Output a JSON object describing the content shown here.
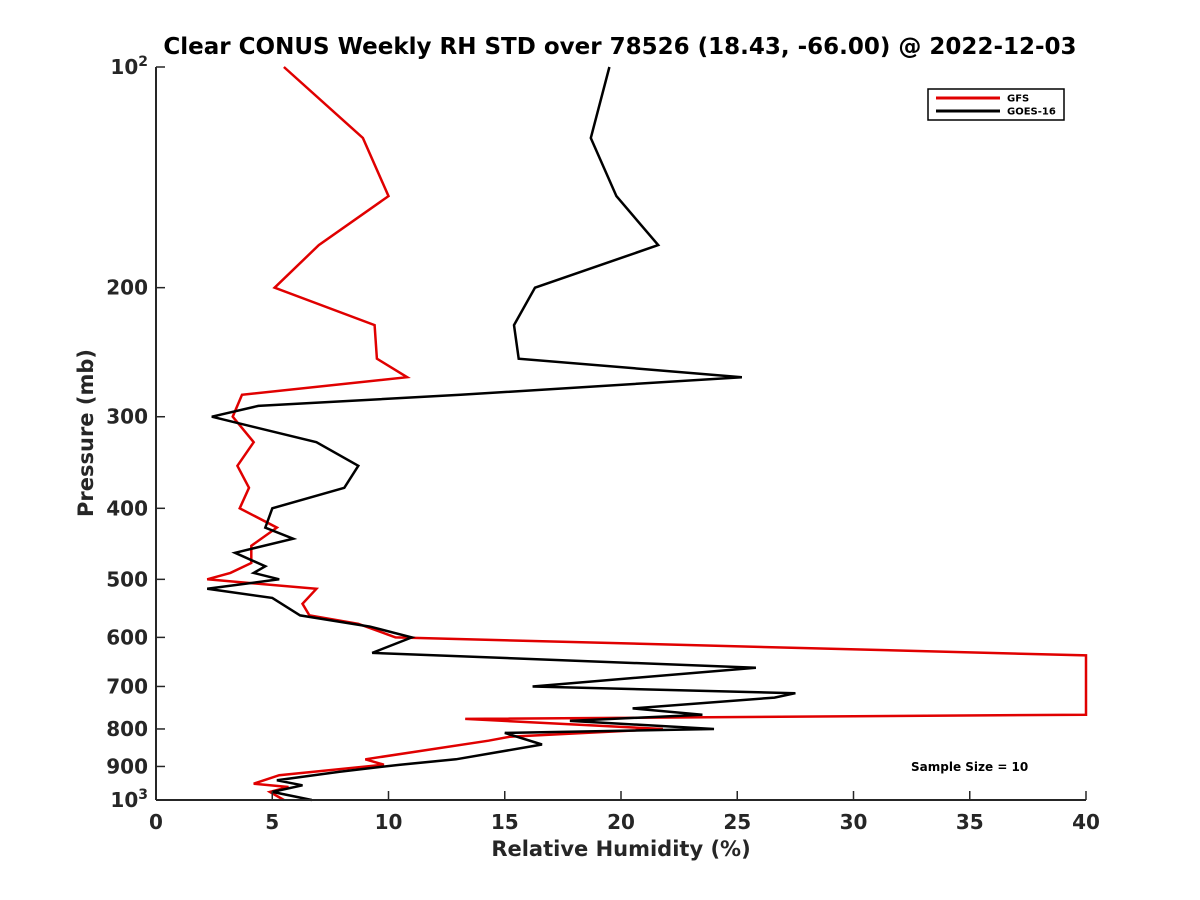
{
  "chart_data": {
    "type": "line",
    "title": "Clear CONUS Weekly RH STD over 78526 (18.43, -66.00) @ 2022-12-03",
    "xlabel": "Relative Humidity (%)",
    "ylabel": "Pressure (mb)",
    "xlim": [
      0,
      40
    ],
    "ylim": [
      100,
      1000
    ],
    "y_scale": "log",
    "y_reversed": true,
    "grid": false,
    "legend_position": "top-right",
    "x_ticks": [
      0,
      5,
      10,
      15,
      20,
      25,
      30,
      35,
      40
    ],
    "y_ticks": [
      {
        "value": 100,
        "base": "10",
        "exp": "2"
      },
      {
        "value": 200,
        "label": "200"
      },
      {
        "value": 300,
        "label": "300"
      },
      {
        "value": 400,
        "label": "400"
      },
      {
        "value": 500,
        "label": "500"
      },
      {
        "value": 600,
        "label": "600"
      },
      {
        "value": 700,
        "label": "700"
      },
      {
        "value": 800,
        "label": "800"
      },
      {
        "value": 900,
        "label": "900"
      },
      {
        "value": 1000,
        "base": "10",
        "exp": "3"
      }
    ],
    "annotation": "Sample Size = 10",
    "series": [
      {
        "name": "GFS",
        "color": "#e00000",
        "points": [
          [
            5.5,
            100
          ],
          [
            8.9,
            125
          ],
          [
            10.0,
            150
          ],
          [
            7.0,
            175
          ],
          [
            5.1,
            200
          ],
          [
            5.1,
            200
          ],
          [
            9.4,
            225
          ],
          [
            9.5,
            250
          ],
          [
            10.8,
            265
          ],
          [
            3.7,
            280
          ],
          [
            3.3,
            300
          ],
          [
            4.2,
            325
          ],
          [
            3.5,
            350
          ],
          [
            3.5,
            350
          ],
          [
            4.0,
            375
          ],
          [
            3.6,
            400
          ],
          [
            5.2,
            425
          ],
          [
            4.1,
            450
          ],
          [
            4.1,
            475
          ],
          [
            3.2,
            490
          ],
          [
            2.2,
            500
          ],
          [
            6.9,
            515
          ],
          [
            6.3,
            540
          ],
          [
            6.6,
            560
          ],
          [
            8.7,
            575
          ],
          [
            10.3,
            600
          ],
          [
            40.0,
            635
          ],
          [
            40.0,
            765
          ],
          [
            13.3,
            775
          ],
          [
            21.8,
            800
          ],
          [
            15.2,
            820
          ],
          [
            14.3,
            830
          ],
          [
            9.0,
            880
          ],
          [
            9.8,
            895
          ],
          [
            5.3,
            925
          ],
          [
            4.2,
            950
          ],
          [
            5.7,
            960
          ],
          [
            4.9,
            975
          ],
          [
            5.5,
            1000
          ]
        ]
      },
      {
        "name": "GOES-16",
        "color": "#000000",
        "points": [
          [
            19.5,
            100
          ],
          [
            18.7,
            125
          ],
          [
            19.8,
            150
          ],
          [
            21.6,
            175
          ],
          [
            16.3,
            200
          ],
          [
            15.4,
            225
          ],
          [
            15.6,
            250
          ],
          [
            25.2,
            265
          ],
          [
            13.1,
            280
          ],
          [
            4.4,
            290
          ],
          [
            2.4,
            300
          ],
          [
            6.9,
            325
          ],
          [
            8.7,
            350
          ],
          [
            8.1,
            375
          ],
          [
            5.0,
            400
          ],
          [
            4.7,
            425
          ],
          [
            5.9,
            440
          ],
          [
            3.4,
            460
          ],
          [
            4.7,
            480
          ],
          [
            4.2,
            490
          ],
          [
            5.3,
            500
          ],
          [
            2.2,
            515
          ],
          [
            5.0,
            530
          ],
          [
            6.2,
            560
          ],
          [
            9.2,
            580
          ],
          [
            11.0,
            600
          ],
          [
            9.3,
            630
          ],
          [
            25.8,
            660
          ],
          [
            16.2,
            700
          ],
          [
            27.5,
            715
          ],
          [
            26.6,
            725
          ],
          [
            20.5,
            750
          ],
          [
            23.5,
            765
          ],
          [
            17.8,
            780
          ],
          [
            24.0,
            800
          ],
          [
            15.0,
            810
          ],
          [
            16.6,
            840
          ],
          [
            12.9,
            880
          ],
          [
            10.5,
            895
          ],
          [
            7.9,
            915
          ],
          [
            5.2,
            940
          ],
          [
            6.3,
            955
          ],
          [
            5.0,
            975
          ],
          [
            6.7,
            1000
          ]
        ]
      }
    ]
  }
}
